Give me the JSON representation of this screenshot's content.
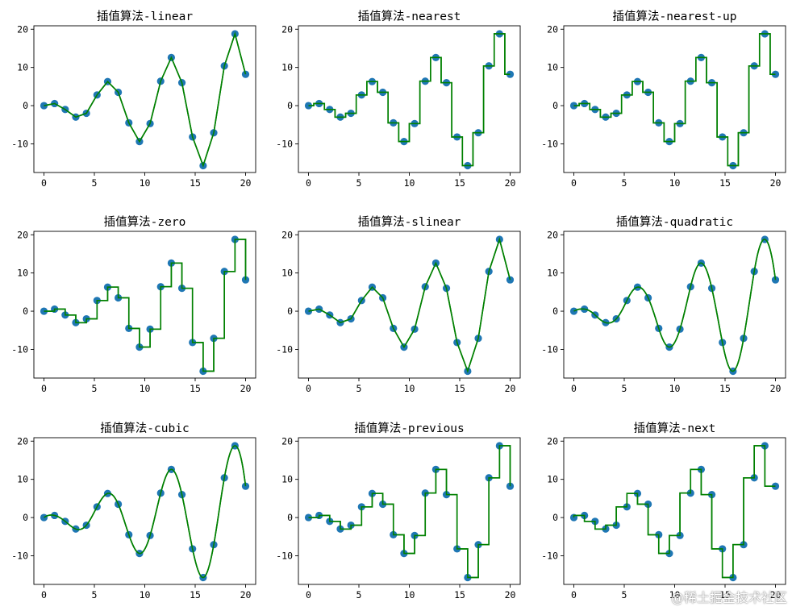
{
  "chart_data": {
    "type": "line",
    "shared": {
      "x_points": [
        0,
        1.0526,
        2.1053,
        3.1579,
        4.2105,
        5.2632,
        6.3158,
        7.3684,
        8.4211,
        9.4737,
        10.5263,
        11.5789,
        12.6316,
        13.6842,
        14.7368,
        15.7895,
        16.8421,
        17.8947,
        18.9474,
        20
      ],
      "y_points": [
        0,
        0.55,
        -1.0,
        -3.0,
        -2.0,
        2.8,
        6.3,
        3.5,
        -4.5,
        -9.4,
        -4.7,
        6.4,
        12.6,
        6.0,
        -8.2,
        -15.7,
        -7.1,
        10.4,
        18.8,
        8.2
      ],
      "xlim": [
        -1,
        21
      ],
      "ylim": [
        -17.5,
        20.9
      ],
      "xticks": [
        0,
        5,
        10,
        15,
        20
      ],
      "yticks": [
        -10,
        0,
        10,
        20
      ],
      "xtick_labels": [
        "0",
        "5",
        "10",
        "15",
        "20"
      ],
      "ytick_labels": [
        "-10",
        "0",
        "10",
        "20"
      ],
      "marker_color": "#1f77b4",
      "line_color": "#008000"
    },
    "panels": [
      {
        "title": "插值算法-linear",
        "kind": "linear"
      },
      {
        "title": "插值算法-nearest",
        "kind": "nearest"
      },
      {
        "title": "插值算法-nearest-up",
        "kind": "nearest-up"
      },
      {
        "title": "插值算法-zero",
        "kind": "zero"
      },
      {
        "title": "插值算法-slinear",
        "kind": "slinear"
      },
      {
        "title": "插值算法-quadratic",
        "kind": "quadratic"
      },
      {
        "title": "插值算法-cubic",
        "kind": "cubic"
      },
      {
        "title": "插值算法-previous",
        "kind": "previous"
      },
      {
        "title": "插值算法-next",
        "kind": "next"
      }
    ]
  },
  "watermark": "@稀土掘金技术社区"
}
